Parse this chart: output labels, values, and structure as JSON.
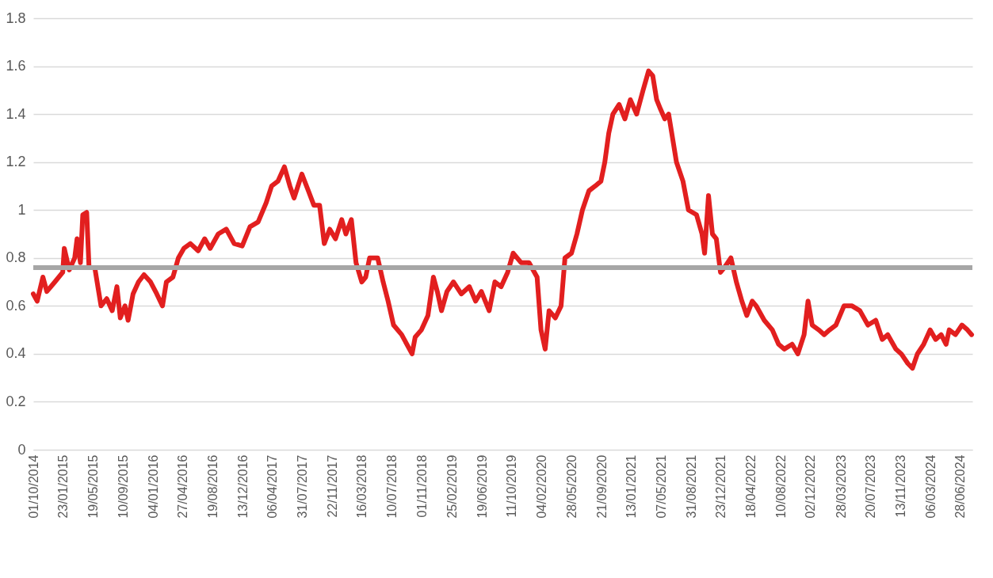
{
  "chart_data": {
    "type": "line",
    "grid": "y",
    "marker": "none",
    "line_style": "solid",
    "xlim": [
      "2014-10-01",
      "2024-08-14"
    ],
    "xticks": [
      {
        "value": "2014-10-01",
        "label": "01/10/2014"
      },
      {
        "value": "2015-01-23",
        "label": "23/01/2015"
      },
      {
        "value": "2015-05-19",
        "label": "19/05/2015"
      },
      {
        "value": "2015-09-10",
        "label": "10/09/2015"
      },
      {
        "value": "2016-01-04",
        "label": "04/01/2016"
      },
      {
        "value": "2016-04-27",
        "label": "27/04/2016"
      },
      {
        "value": "2016-08-19",
        "label": "19/08/2016"
      },
      {
        "value": "2016-12-13",
        "label": "13/12/2016"
      },
      {
        "value": "2017-04-06",
        "label": "06/04/2017"
      },
      {
        "value": "2017-07-31",
        "label": "31/07/2017"
      },
      {
        "value": "2017-11-22",
        "label": "22/11/2017"
      },
      {
        "value": "2018-03-16",
        "label": "16/03/2018"
      },
      {
        "value": "2018-07-10",
        "label": "10/07/2018"
      },
      {
        "value": "2018-11-01",
        "label": "01/11/2018"
      },
      {
        "value": "2019-02-25",
        "label": "25/02/2019"
      },
      {
        "value": "2019-06-19",
        "label": "19/06/2019"
      },
      {
        "value": "2019-10-11",
        "label": "11/10/2019"
      },
      {
        "value": "2020-02-04",
        "label": "04/02/2020"
      },
      {
        "value": "2020-05-28",
        "label": "28/05/2020"
      },
      {
        "value": "2020-09-21",
        "label": "21/09/2020"
      },
      {
        "value": "2021-01-13",
        "label": "13/01/2021"
      },
      {
        "value": "2021-05-07",
        "label": "07/05/2021"
      },
      {
        "value": "2021-08-31",
        "label": "31/08/2021"
      },
      {
        "value": "2021-12-23",
        "label": "23/12/2021"
      },
      {
        "value": "2022-04-18",
        "label": "18/04/2022"
      },
      {
        "value": "2022-08-10",
        "label": "10/08/2022"
      },
      {
        "value": "2022-12-02",
        "label": "02/12/2022"
      },
      {
        "value": "2023-03-28",
        "label": "28/03/2023"
      },
      {
        "value": "2023-07-20",
        "label": "20/07/2023"
      },
      {
        "value": "2023-11-13",
        "label": "13/11/2023"
      },
      {
        "value": "2024-03-06",
        "label": "06/03/2024"
      },
      {
        "value": "2024-06-28",
        "label": "28/06/2024"
      }
    ],
    "ylim": [
      0,
      1.8
    ],
    "yticks": [
      0,
      0.2,
      0.4,
      0.6,
      0.8,
      1,
      1.2,
      1.4,
      1.6,
      1.8
    ],
    "ref_lines": [
      {
        "axis": "y",
        "value": 0.76,
        "color": "#a6a6a6"
      }
    ],
    "series": [
      {
        "color": "#e21f1f",
        "x": [
          "2014-10-01",
          "2014-10-16",
          "2014-11-07",
          "2014-11-22",
          "2014-12-23",
          "2015-01-22",
          "2015-01-28",
          "2015-02-16",
          "2015-03-09",
          "2015-03-18",
          "2015-03-31",
          "2015-04-09",
          "2015-04-24",
          "2015-05-03",
          "2015-05-25",
          "2015-06-09",
          "2015-06-18",
          "2015-07-10",
          "2015-07-31",
          "2015-08-18",
          "2015-08-31",
          "2015-09-18",
          "2015-09-30",
          "2015-10-19",
          "2015-11-09",
          "2015-11-30",
          "2015-12-25",
          "2016-01-18",
          "2016-02-09",
          "2016-02-24",
          "2016-03-20",
          "2016-04-10",
          "2016-05-01",
          "2016-05-26",
          "2016-06-25",
          "2016-07-20",
          "2016-08-10",
          "2016-09-10",
          "2016-10-11",
          "2016-11-10",
          "2016-12-11",
          "2017-01-10",
          "2017-02-10",
          "2017-03-13",
          "2017-04-03",
          "2017-04-27",
          "2017-05-22",
          "2017-06-12",
          "2017-06-28",
          "2017-07-28",
          "2017-08-22",
          "2017-09-12",
          "2017-10-04",
          "2017-10-22",
          "2017-11-12",
          "2017-12-04",
          "2017-12-28",
          "2018-01-13",
          "2018-02-03",
          "2018-02-21",
          "2018-03-15",
          "2018-03-30",
          "2018-04-14",
          "2018-05-15",
          "2018-06-05",
          "2018-06-24",
          "2018-07-15",
          "2018-08-15",
          "2018-09-14",
          "2018-09-24",
          "2018-10-06",
          "2018-10-30",
          "2018-11-24",
          "2018-12-15",
          "2018-12-30",
          "2019-01-15",
          "2019-02-05",
          "2019-03-02",
          "2019-04-01",
          "2019-05-02",
          "2019-05-26",
          "2019-06-17",
          "2019-07-17",
          "2019-08-08",
          "2019-09-01",
          "2019-09-26",
          "2019-10-17",
          "2019-11-17",
          "2019-12-17",
          "2020-01-17",
          "2020-02-01",
          "2020-02-17",
          "2020-03-03",
          "2020-03-27",
          "2020-04-18",
          "2020-05-03",
          "2020-05-28",
          "2020-06-18",
          "2020-07-09",
          "2020-08-03",
          "2020-08-27",
          "2020-09-18",
          "2020-10-03",
          "2020-10-18",
          "2020-11-03",
          "2020-11-27",
          "2020-12-19",
          "2021-01-09",
          "2021-02-02",
          "2021-02-27",
          "2021-03-20",
          "2021-04-05",
          "2021-04-20",
          "2021-05-05",
          "2021-05-21",
          "2021-06-05",
          "2021-06-20",
          "2021-07-05",
          "2021-07-30",
          "2021-08-20",
          "2021-09-20",
          "2021-10-11",
          "2021-10-21",
          "2021-11-05",
          "2021-11-20",
          "2021-12-05",
          "2021-12-21",
          "2022-01-05",
          "2022-01-30",
          "2022-02-20",
          "2022-03-13",
          "2022-04-01",
          "2022-04-22",
          "2022-05-07",
          "2022-06-07",
          "2022-07-08",
          "2022-08-01",
          "2022-08-23",
          "2022-09-22",
          "2022-10-14",
          "2022-11-07",
          "2022-11-22",
          "2022-12-08",
          "2023-01-02",
          "2023-01-23",
          "2023-02-13",
          "2023-03-09",
          "2023-04-09",
          "2023-05-10",
          "2023-06-09",
          "2023-07-10",
          "2023-08-09",
          "2023-09-03",
          "2023-09-24",
          "2023-10-25",
          "2023-11-15",
          "2023-12-10",
          "2023-12-28",
          "2024-01-16",
          "2024-02-09",
          "2024-03-05",
          "2024-03-26",
          "2024-04-16",
          "2024-05-05",
          "2024-05-17",
          "2024-06-10",
          "2024-07-05",
          "2024-07-26",
          "2024-08-11"
        ],
        "values": [
          0.65,
          0.62,
          0.72,
          0.66,
          0.7,
          0.74,
          0.84,
          0.75,
          0.8,
          0.88,
          0.78,
          0.98,
          0.99,
          0.76,
          0.76,
          0.66,
          0.6,
          0.63,
          0.58,
          0.68,
          0.55,
          0.6,
          0.54,
          0.65,
          0.7,
          0.73,
          0.7,
          0.65,
          0.6,
          0.7,
          0.72,
          0.8,
          0.84,
          0.86,
          0.83,
          0.88,
          0.84,
          0.9,
          0.92,
          0.86,
          0.85,
          0.93,
          0.95,
          1.03,
          1.1,
          1.12,
          1.18,
          1.1,
          1.05,
          1.15,
          1.08,
          1.02,
          1.02,
          0.86,
          0.92,
          0.88,
          0.96,
          0.9,
          0.96,
          0.78,
          0.7,
          0.72,
          0.8,
          0.8,
          0.7,
          0.62,
          0.52,
          0.48,
          0.42,
          0.4,
          0.47,
          0.5,
          0.56,
          0.72,
          0.66,
          0.58,
          0.66,
          0.7,
          0.65,
          0.68,
          0.62,
          0.66,
          0.58,
          0.7,
          0.68,
          0.74,
          0.82,
          0.78,
          0.78,
          0.72,
          0.5,
          0.42,
          0.58,
          0.55,
          0.6,
          0.8,
          0.82,
          0.9,
          1,
          1.08,
          1.1,
          1.12,
          1.2,
          1.32,
          1.4,
          1.44,
          1.38,
          1.46,
          1.4,
          1.5,
          1.58,
          1.56,
          1.46,
          1.42,
          1.38,
          1.4,
          1.3,
          1.2,
          1.12,
          1,
          0.98,
          0.9,
          0.82,
          1.06,
          0.9,
          0.88,
          0.74,
          0.76,
          0.8,
          0.7,
          0.62,
          0.56,
          0.62,
          0.6,
          0.54,
          0.5,
          0.44,
          0.42,
          0.44,
          0.4,
          0.48,
          0.62,
          0.52,
          0.5,
          0.48,
          0.5,
          0.52,
          0.6,
          0.6,
          0.58,
          0.52,
          0.54,
          0.46,
          0.48,
          0.42,
          0.4,
          0.36,
          0.34,
          0.4,
          0.44,
          0.5,
          0.46,
          0.48,
          0.44,
          0.5,
          0.48,
          0.52,
          0.5,
          0.48
        ]
      }
    ]
  }
}
